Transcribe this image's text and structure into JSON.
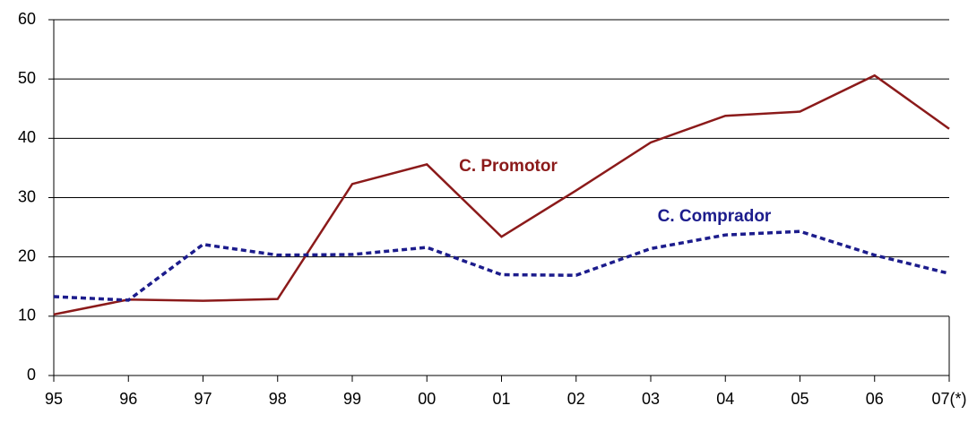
{
  "chart_data": {
    "type": "line",
    "categories": [
      "95",
      "96",
      "97",
      "98",
      "99",
      "00",
      "01",
      "02",
      "03",
      "04",
      "05",
      "06",
      "07(*)"
    ],
    "series": [
      {
        "name": "C. Promotor",
        "color": "#8b1a1a",
        "dash": false,
        "values": [
          10.3,
          12.8,
          12.6,
          12.9,
          32.3,
          35.6,
          23.4,
          31.2,
          39.3,
          43.8,
          44.5,
          50.6,
          41.6
        ]
      },
      {
        "name": "C. Comprador",
        "color": "#1c1c8c",
        "dash": true,
        "values": [
          13.3,
          12.7,
          22.1,
          20.3,
          20.4,
          21.6,
          17.0,
          16.9,
          21.4,
          23.7,
          24.3,
          20.3,
          17.2
        ]
      }
    ],
    "ylim": [
      0,
      60
    ],
    "yticks": [
      0,
      10,
      20,
      30,
      40,
      50,
      60
    ],
    "grid": true
  }
}
